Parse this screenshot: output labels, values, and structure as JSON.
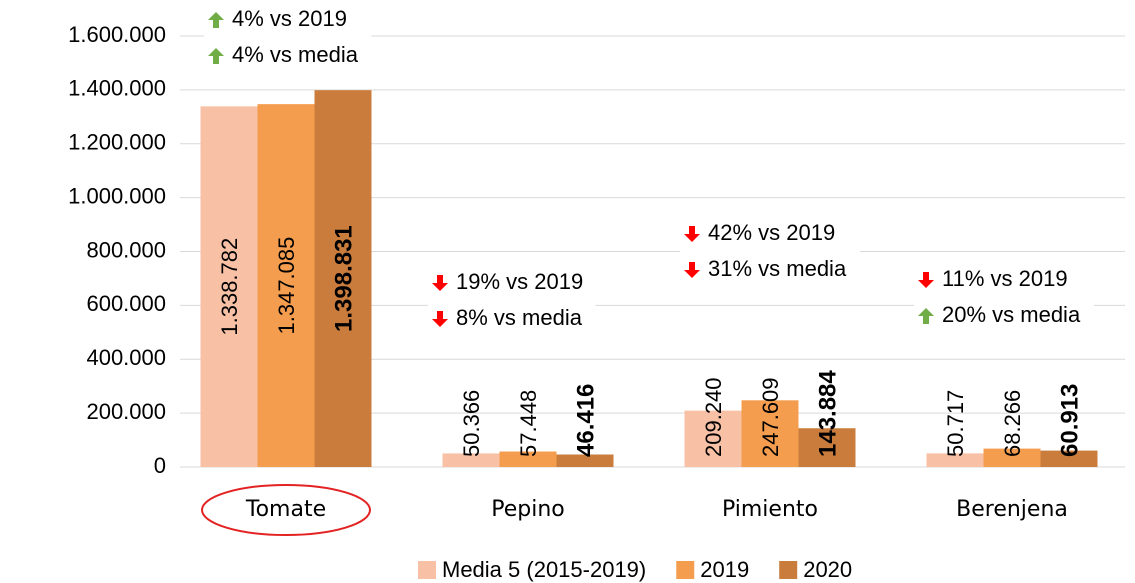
{
  "chart_data": {
    "type": "bar",
    "categories": [
      "Tomate",
      "Pepino",
      "Pimiento",
      "Berenjena"
    ],
    "series": [
      {
        "name": "Media 5 (2015-2019)",
        "color": "#f8c1a6",
        "values": [
          1338782,
          50366,
          209240,
          50717
        ],
        "value_labels": [
          "1.338.782",
          "50.366",
          "209.240",
          "50.717"
        ]
      },
      {
        "name": "2019",
        "color": "#f59d4f",
        "values": [
          1347085,
          57448,
          247609,
          68266
        ],
        "value_labels": [
          "1.347.085",
          "57.448",
          "247.609",
          "68.266"
        ]
      },
      {
        "name": "2020",
        "color": "#c97c3b",
        "values": [
          1398831,
          46416,
          143884,
          60913
        ],
        "value_labels": [
          "1.398.831",
          "46.416",
          "143.884",
          "60.913"
        ],
        "bold_labels": true
      }
    ],
    "ylim": [
      0,
      1600000
    ],
    "yticks": [
      0,
      {
        "value": 200000,
        "label": "200.000"
      },
      {
        "value": 400000,
        "label": "400.000"
      },
      {
        "value": 600000,
        "label": "600.000"
      },
      {
        "value": 800000,
        "label": "800.000"
      },
      {
        "value": 1000000,
        "label": "1.000.000"
      },
      {
        "value": 1200000,
        "label": "1.200.000"
      },
      {
        "value": 1400000,
        "label": "1.400.000"
      },
      {
        "value": 1600000,
        "label": "1.600.000"
      }
    ],
    "grid": true,
    "legend": "bottom",
    "annotations": [
      {
        "category": "Tomate",
        "lines": [
          {
            "text": "4% vs 2019",
            "direction": "up"
          },
          {
            "text": "4% vs media",
            "direction": "up"
          }
        ]
      },
      {
        "category": "Pepino",
        "lines": [
          {
            "text": "19% vs 2019",
            "direction": "down"
          },
          {
            "text": "8% vs media",
            "direction": "down"
          }
        ]
      },
      {
        "category": "Pimiento",
        "lines": [
          {
            "text": "42% vs 2019",
            "direction": "down"
          },
          {
            "text": "31% vs media",
            "direction": "down"
          }
        ]
      },
      {
        "category": "Berenjena",
        "lines": [
          {
            "text": "11% vs 2019",
            "direction": "down"
          },
          {
            "text": "20% vs media",
            "direction": "up"
          }
        ]
      }
    ],
    "highlight": "Tomate"
  }
}
